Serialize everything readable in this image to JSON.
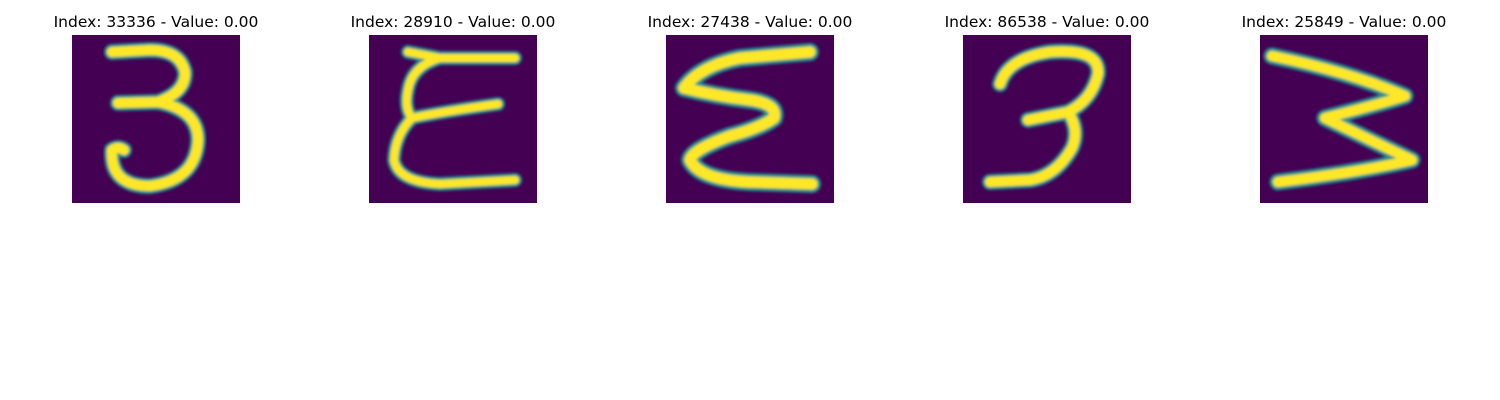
{
  "figure": {
    "panels": [
      {
        "title": "Index: 33336 - Value: 0.00",
        "image_content": "handwritten digit 3 (vertical strokes)",
        "colormap": "viridis"
      },
      {
        "title": "Index: 28910 - Value: 0.00",
        "image_content": "handwritten epsilon-like glyph with three horizontal strokes",
        "colormap": "viridis"
      },
      {
        "title": "Index: 27438 - Value: 0.00",
        "image_content": "handwritten sigma-like zigzag glyph",
        "colormap": "viridis"
      },
      {
        "title": "Index: 86538 - Value: 0.00",
        "image_content": "handwritten digit 3 with curved top",
        "colormap": "viridis"
      },
      {
        "title": "Index: 25849 - Value: 0.00",
        "image_content": "handwritten reversed-3 / zigzag glyph",
        "colormap": "viridis"
      }
    ],
    "colors": {
      "background": "#440154",
      "mid": "#21918c",
      "stroke": "#fde725",
      "edge": "#5ec962"
    }
  }
}
